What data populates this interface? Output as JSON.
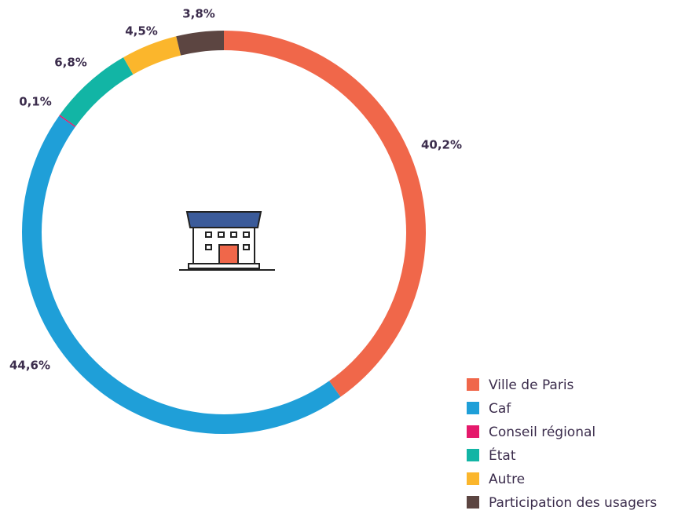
{
  "chart_data": {
    "type": "donut",
    "categories": [
      "Ville de Paris",
      "Caf",
      "Conseil régional",
      "État",
      "Autre",
      "Participation des usagers"
    ],
    "values": [
      40.2,
      44.6,
      0.1,
      6.8,
      4.5,
      3.8
    ],
    "value_labels": [
      "40,2%",
      "44,6%",
      "0,1%",
      "6,8%",
      "4,5%",
      "3,8%"
    ],
    "colors": [
      "#f0674a",
      "#1f9fd8",
      "#e5196b",
      "#12b5a5",
      "#fbb62c",
      "#5c4541"
    ],
    "legend": "bottom-right"
  }
}
